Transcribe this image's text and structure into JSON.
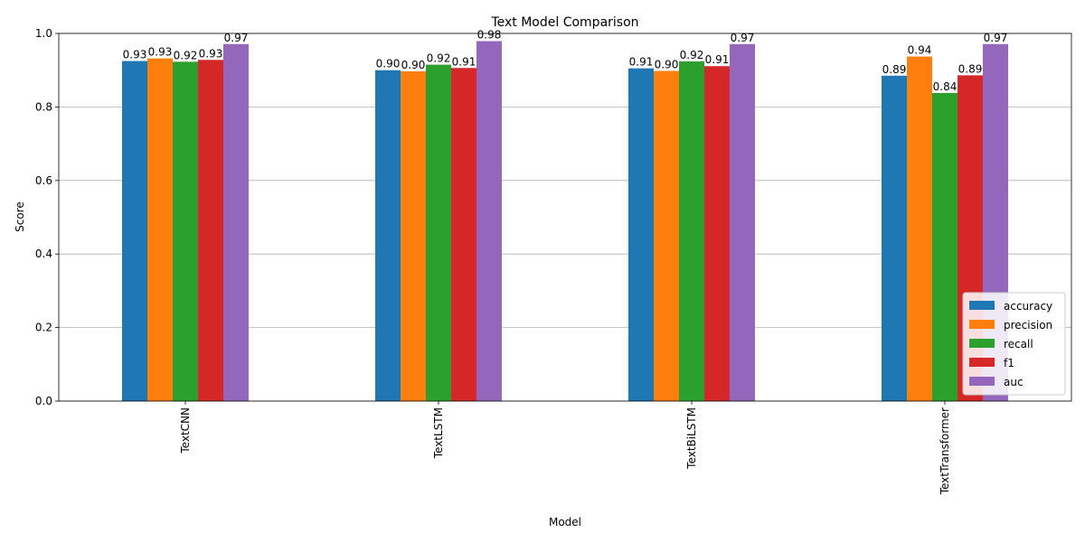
{
  "chart_data": {
    "type": "bar",
    "title": "Text Model Comparison",
    "xlabel": "Model",
    "ylabel": "Score",
    "ylim": [
      0,
      1.0
    ],
    "yticks": [
      "0.0",
      "0.2",
      "0.4",
      "0.6",
      "0.8",
      "1.0"
    ],
    "grid": "y",
    "legend_position": "bottom-right",
    "categories": [
      "TextCNN",
      "TextLSTM",
      "TextBiLSTM",
      "TextTransformer"
    ],
    "series": [
      {
        "name": "accuracy",
        "color": "#1f77b4",
        "values": [
          0.925,
          0.9,
          0.905,
          0.885
        ],
        "labels": [
          "0.93",
          "0.90",
          "0.91",
          "0.89"
        ]
      },
      {
        "name": "precision",
        "color": "#ff7f0e",
        "values": [
          0.932,
          0.897,
          0.898,
          0.937
        ],
        "labels": [
          "0.93",
          "0.90",
          "0.90",
          "0.94"
        ]
      },
      {
        "name": "recall",
        "color": "#2ca02c",
        "values": [
          0.923,
          0.915,
          0.924,
          0.838
        ],
        "labels": [
          "0.92",
          "0.92",
          "0.92",
          "0.84"
        ]
      },
      {
        "name": "f1",
        "color": "#d62728",
        "values": [
          0.928,
          0.906,
          0.911,
          0.886
        ],
        "labels": [
          "0.93",
          "0.91",
          "0.91",
          "0.89"
        ]
      },
      {
        "name": "auc",
        "color": "#9467bd",
        "values": [
          0.971,
          0.979,
          0.971,
          0.971
        ],
        "labels": [
          "0.97",
          "0.98",
          "0.97",
          "0.97"
        ]
      }
    ]
  }
}
